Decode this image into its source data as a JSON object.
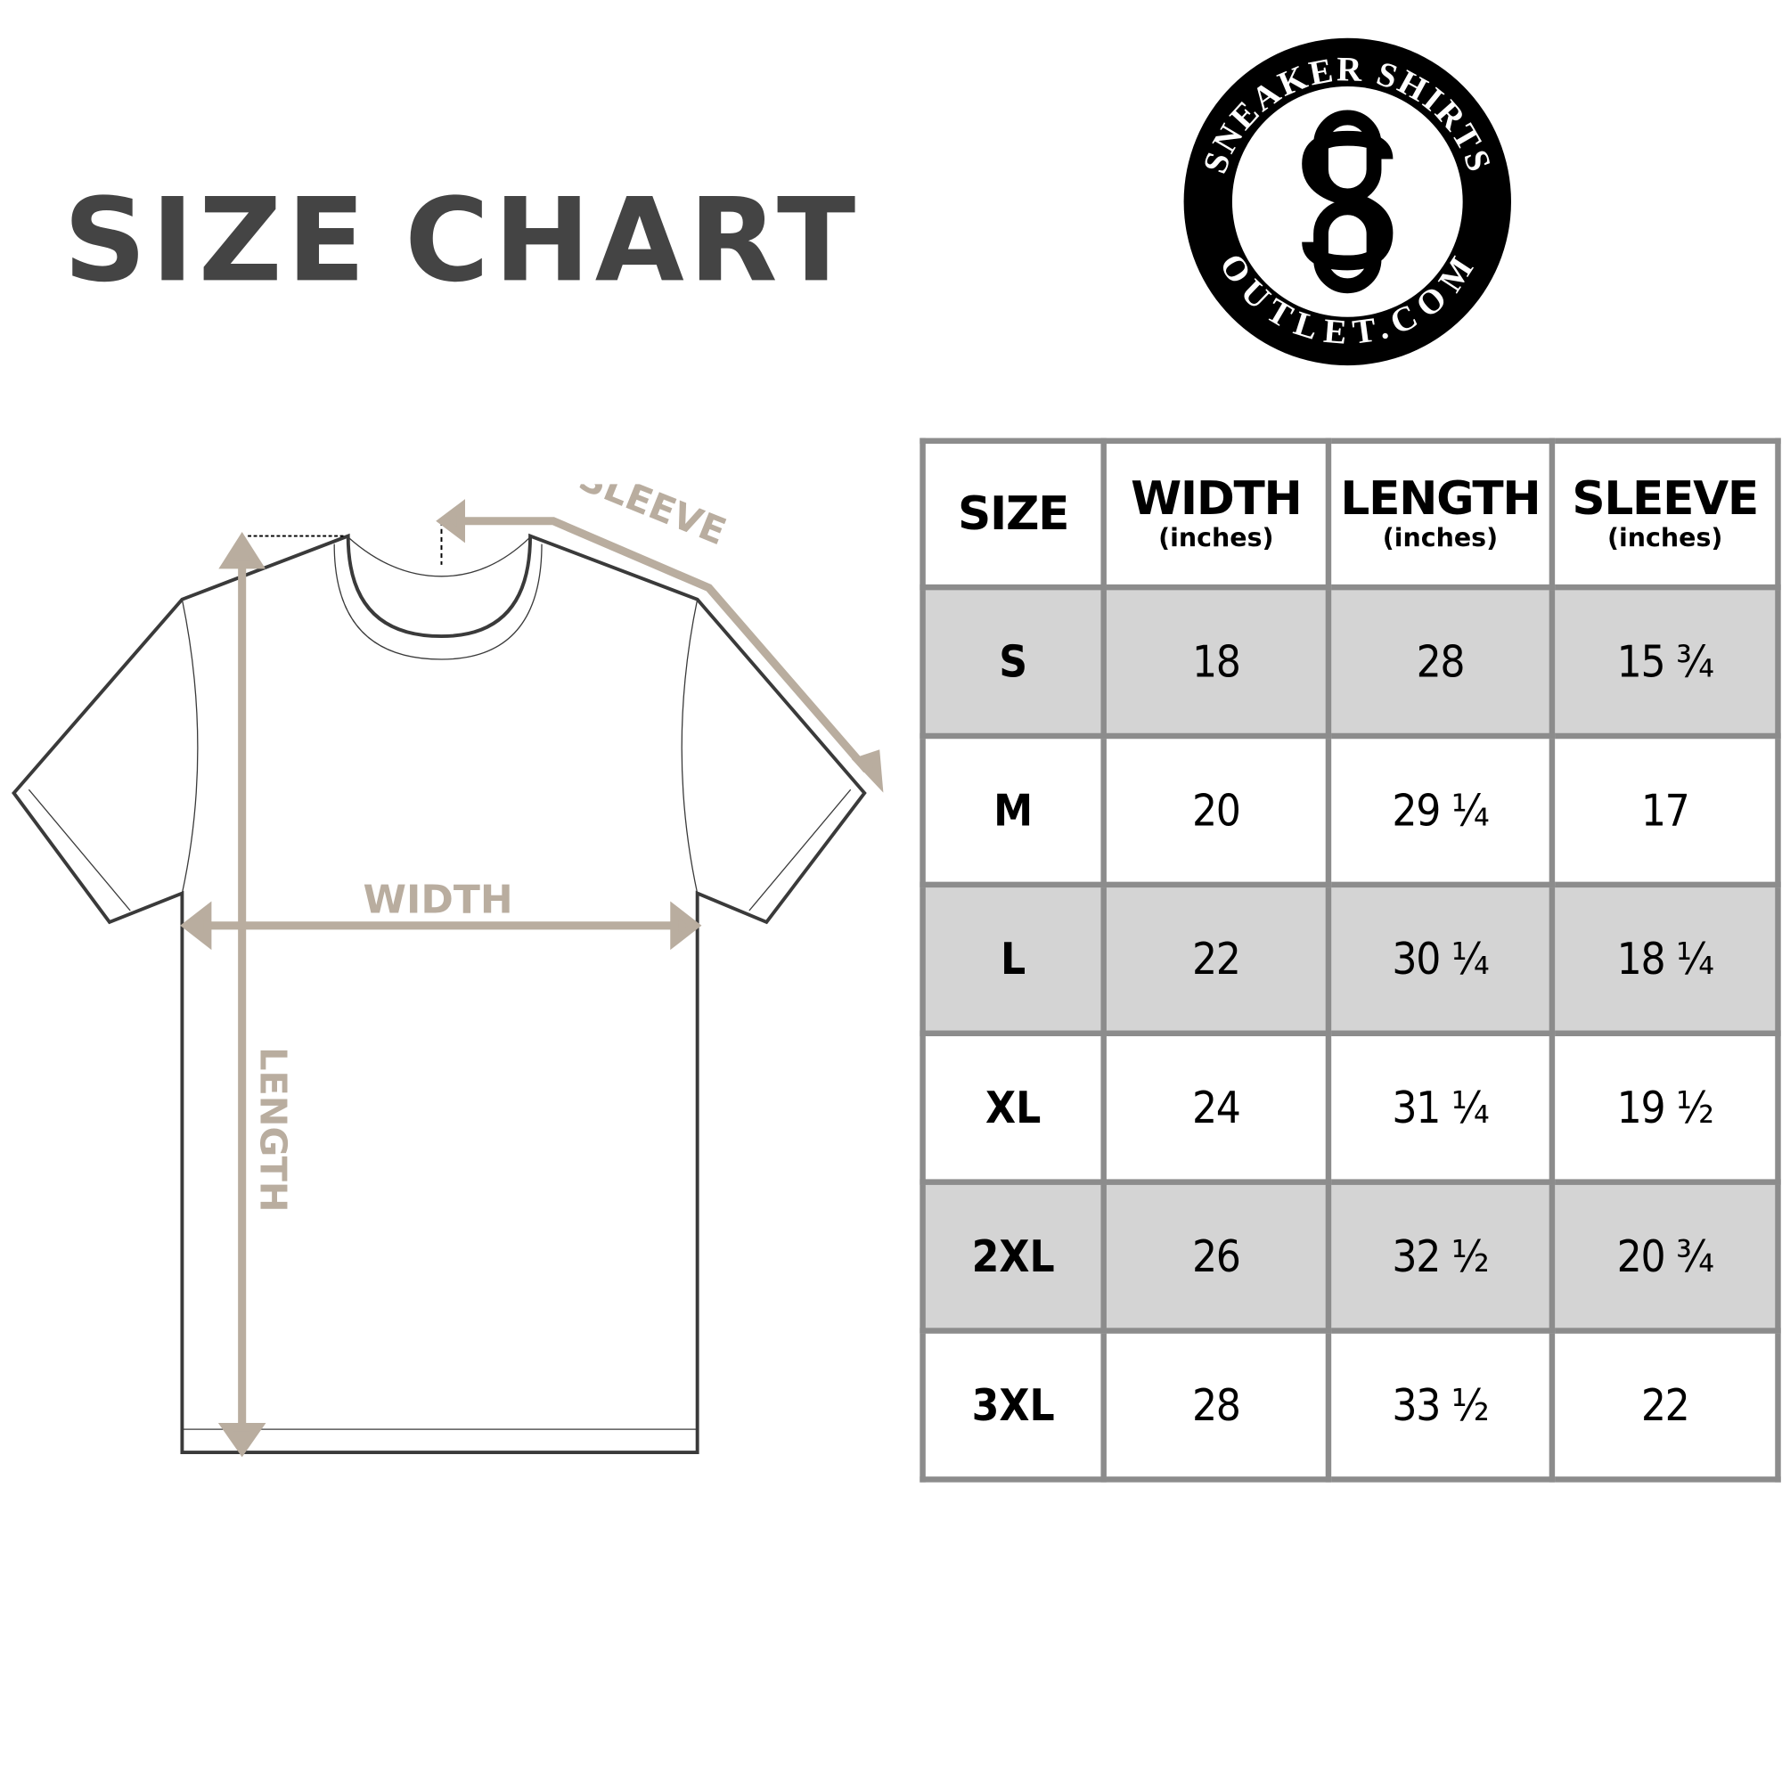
{
  "title": {
    "word1": "SIZE",
    "word2": "CHART"
  },
  "logo": {
    "top_text": "SNEAKER SHIRTS",
    "bottom_text": "OUTLET.COM",
    "monogram": "SO"
  },
  "diagram": {
    "labels": {
      "width": "WIDTH",
      "length": "LENGTH",
      "sleeve": "SLEEVE"
    },
    "colors": {
      "arrow": "#b9ad9f",
      "outline": "#3a3a3a"
    }
  },
  "table": {
    "headers": [
      {
        "main": "SIZE",
        "sub": ""
      },
      {
        "main": "WIDTH",
        "sub": "(inches)"
      },
      {
        "main": "LENGTH",
        "sub": "(inches)"
      },
      {
        "main": "SLEEVE",
        "sub": "(inches)"
      }
    ],
    "rows": [
      {
        "size": "S",
        "width": "18",
        "length": "28",
        "sleeve": "15 ¾"
      },
      {
        "size": "M",
        "width": "20",
        "length": "29 ¼",
        "sleeve": "17"
      },
      {
        "size": "L",
        "width": "22",
        "length": "30 ¼",
        "sleeve": "18 ¼"
      },
      {
        "size": "XL",
        "width": "24",
        "length": "31 ¼",
        "sleeve": "19 ½"
      },
      {
        "size": "2XL",
        "width": "26",
        "length": "32 ½",
        "sleeve": "20 ¾"
      },
      {
        "size": "3XL",
        "width": "28",
        "length": "33 ½",
        "sleeve": "22"
      }
    ],
    "colors": {
      "border": "#8c8c8c",
      "shade": "#d4d4d4"
    }
  }
}
